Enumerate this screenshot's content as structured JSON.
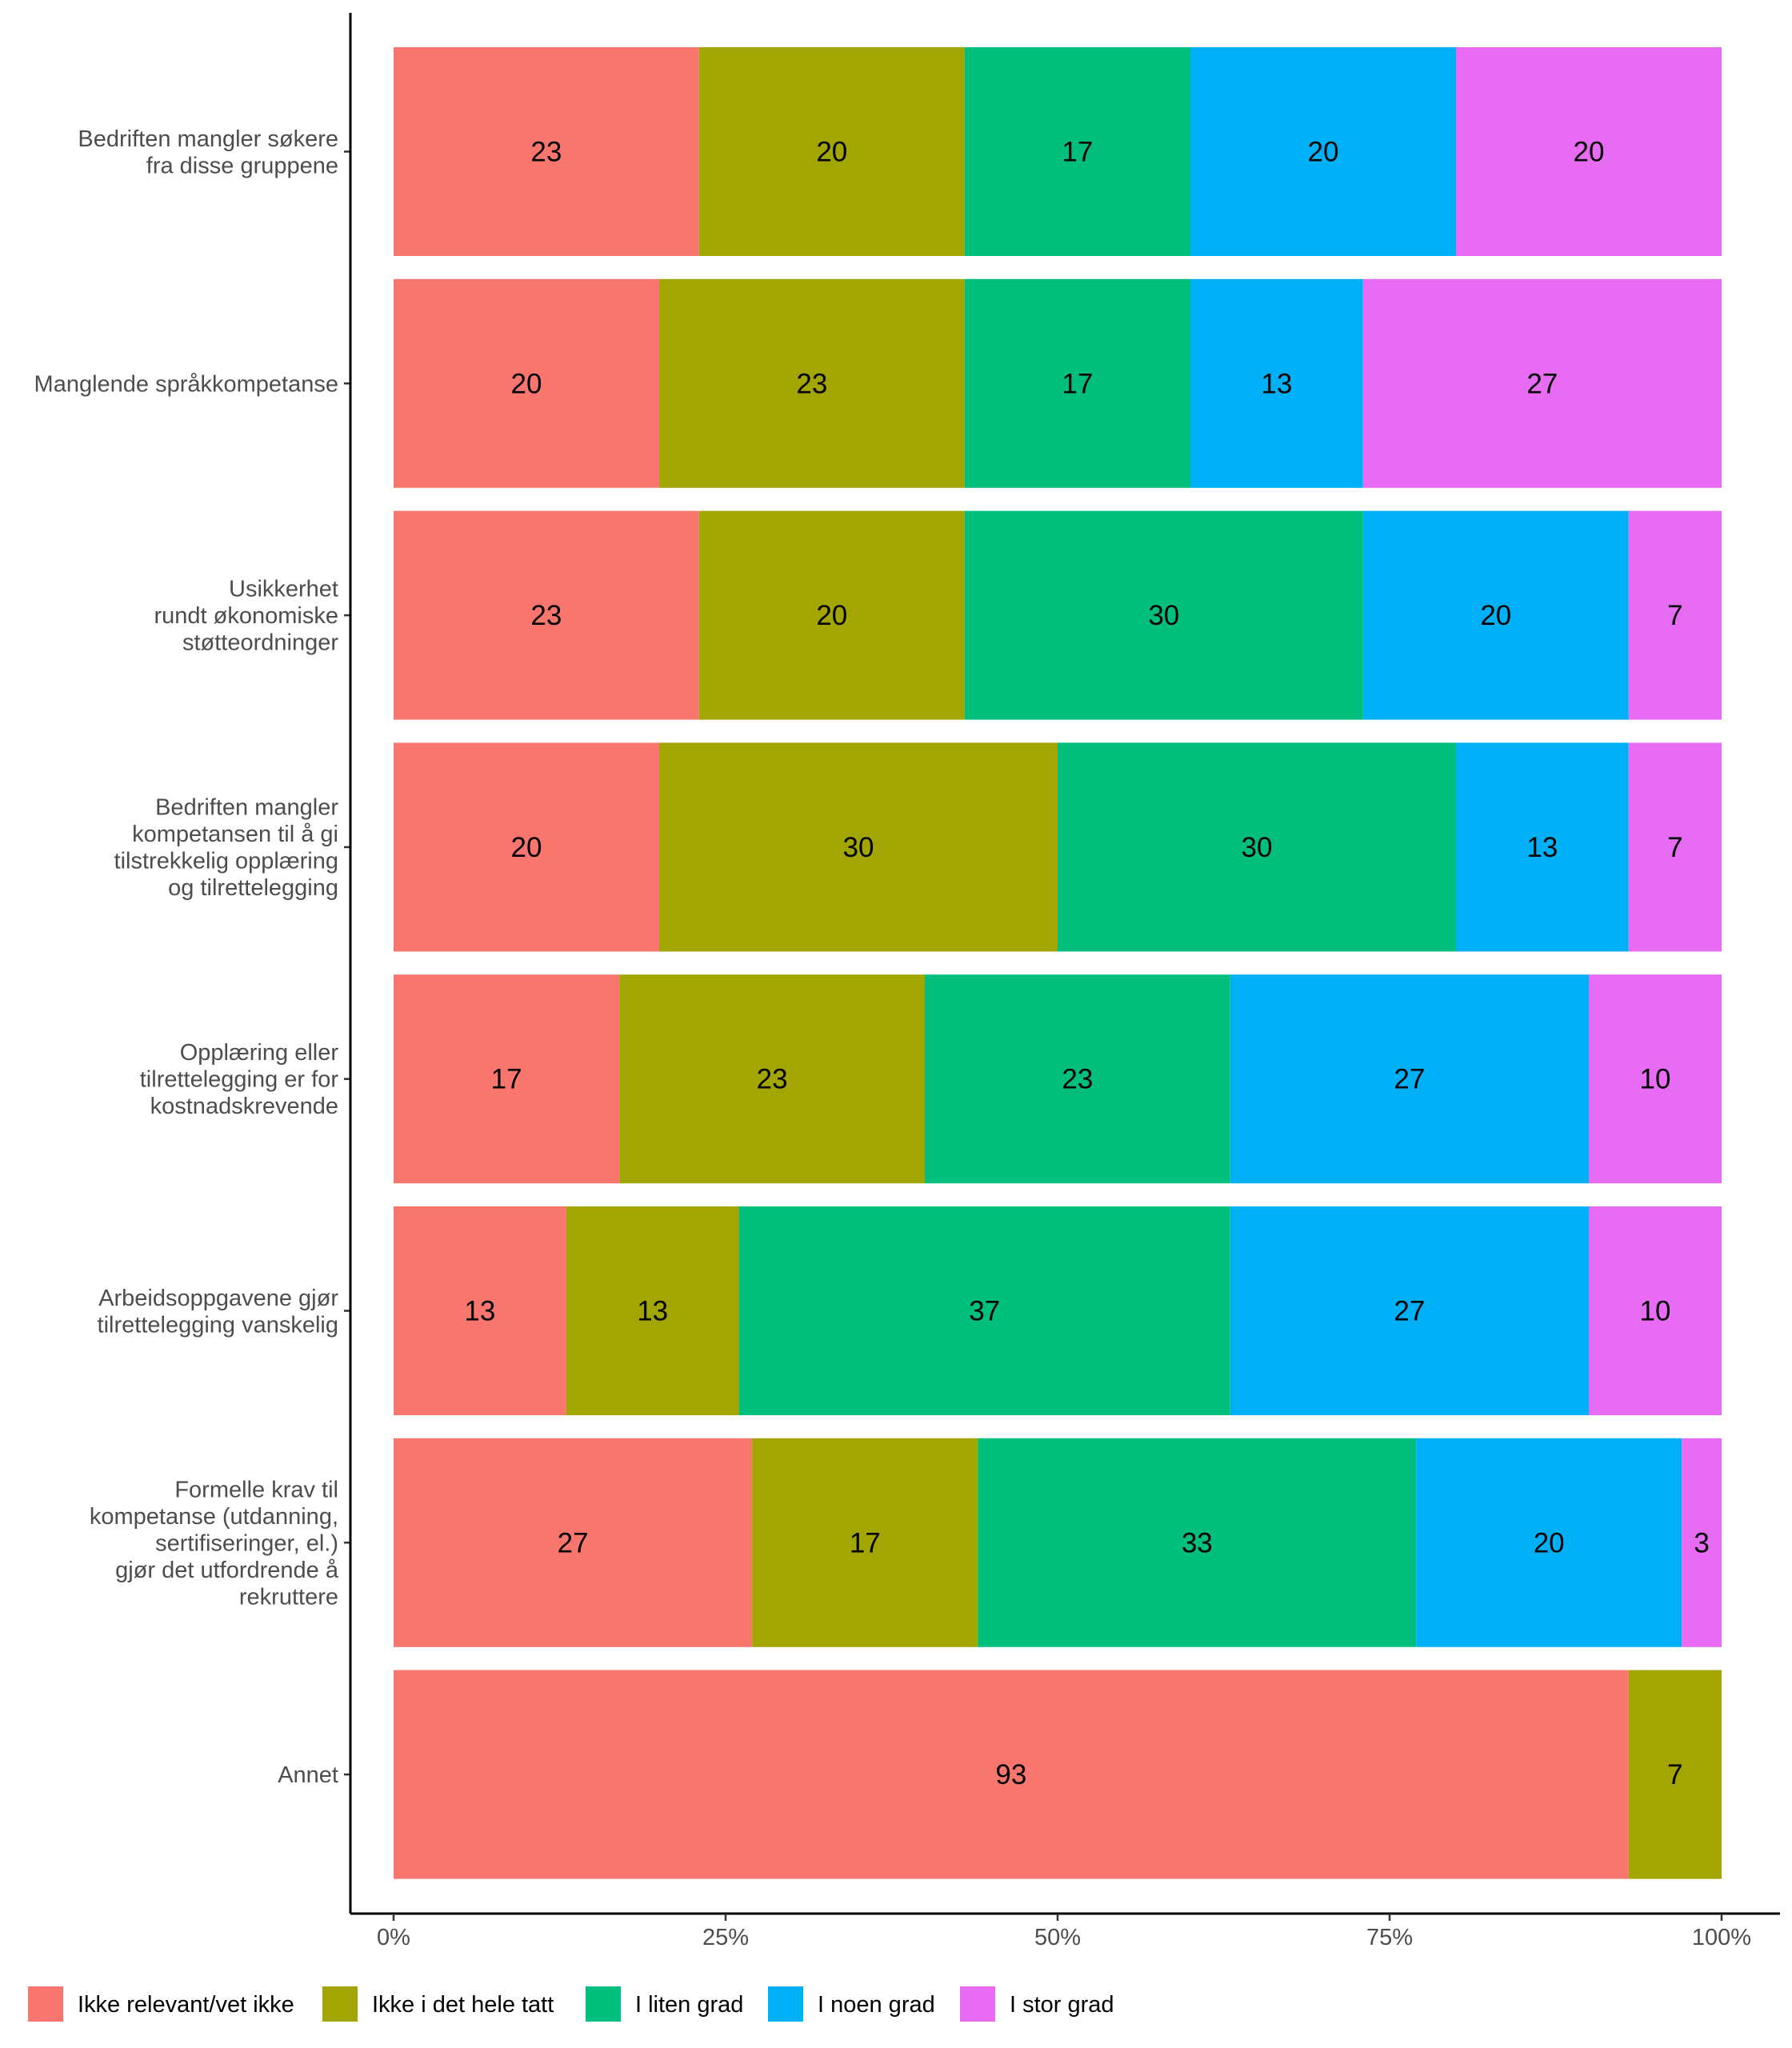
{
  "chart_data": {
    "type": "bar",
    "orientation": "horizontal",
    "stacked": true,
    "normalized": true,
    "categories": [
      [
        "Bedriften mangler søkere",
        "fra disse gruppene"
      ],
      [
        "Manglende språkkompetanse"
      ],
      [
        "Usikkerhet",
        "rundt økonomiske",
        "støtteordninger"
      ],
      [
        "Bedriften mangler",
        "kompetansen til å gi",
        "tilstrekkelig opplæring",
        "og tilrettelegging"
      ],
      [
        "Opplæring eller",
        "tilrettelegging er for",
        "kostnadskrevende"
      ],
      [
        "Arbeidsoppgavene gjør",
        "tilrettelegging vanskelig"
      ],
      [
        "Formelle krav til",
        "kompetanse (utdanning,",
        "sertifiseringer, el.)",
        "gjør det utfordrende å",
        "rekruttere"
      ],
      [
        "Annet"
      ]
    ],
    "series": [
      {
        "name": "Ikke relevant/vet ikke",
        "color": "#F8766D",
        "values": [
          23,
          20,
          23,
          20,
          17,
          13,
          27,
          93
        ]
      },
      {
        "name": "Ikke i det hele tatt",
        "color": "#A3A500",
        "values": [
          20,
          23,
          20,
          30,
          23,
          13,
          17,
          7
        ]
      },
      {
        "name": "I liten grad",
        "color": "#00BF7D",
        "values": [
          17,
          17,
          30,
          30,
          23,
          37,
          33,
          0
        ]
      },
      {
        "name": "I noen grad",
        "color": "#00B0F6",
        "values": [
          20,
          13,
          20,
          13,
          27,
          27,
          20,
          0
        ]
      },
      {
        "name": "I stor grad",
        "color": "#E76BF3",
        "values": [
          20,
          27,
          7,
          7,
          10,
          10,
          3,
          0
        ]
      }
    ],
    "xticks": [
      "0%",
      "25%",
      "50%",
      "75%",
      "100%"
    ],
    "xlim": [
      0,
      100
    ],
    "xlabel": "",
    "ylabel": "",
    "title": "",
    "grid": false,
    "legend_position": "bottom"
  }
}
